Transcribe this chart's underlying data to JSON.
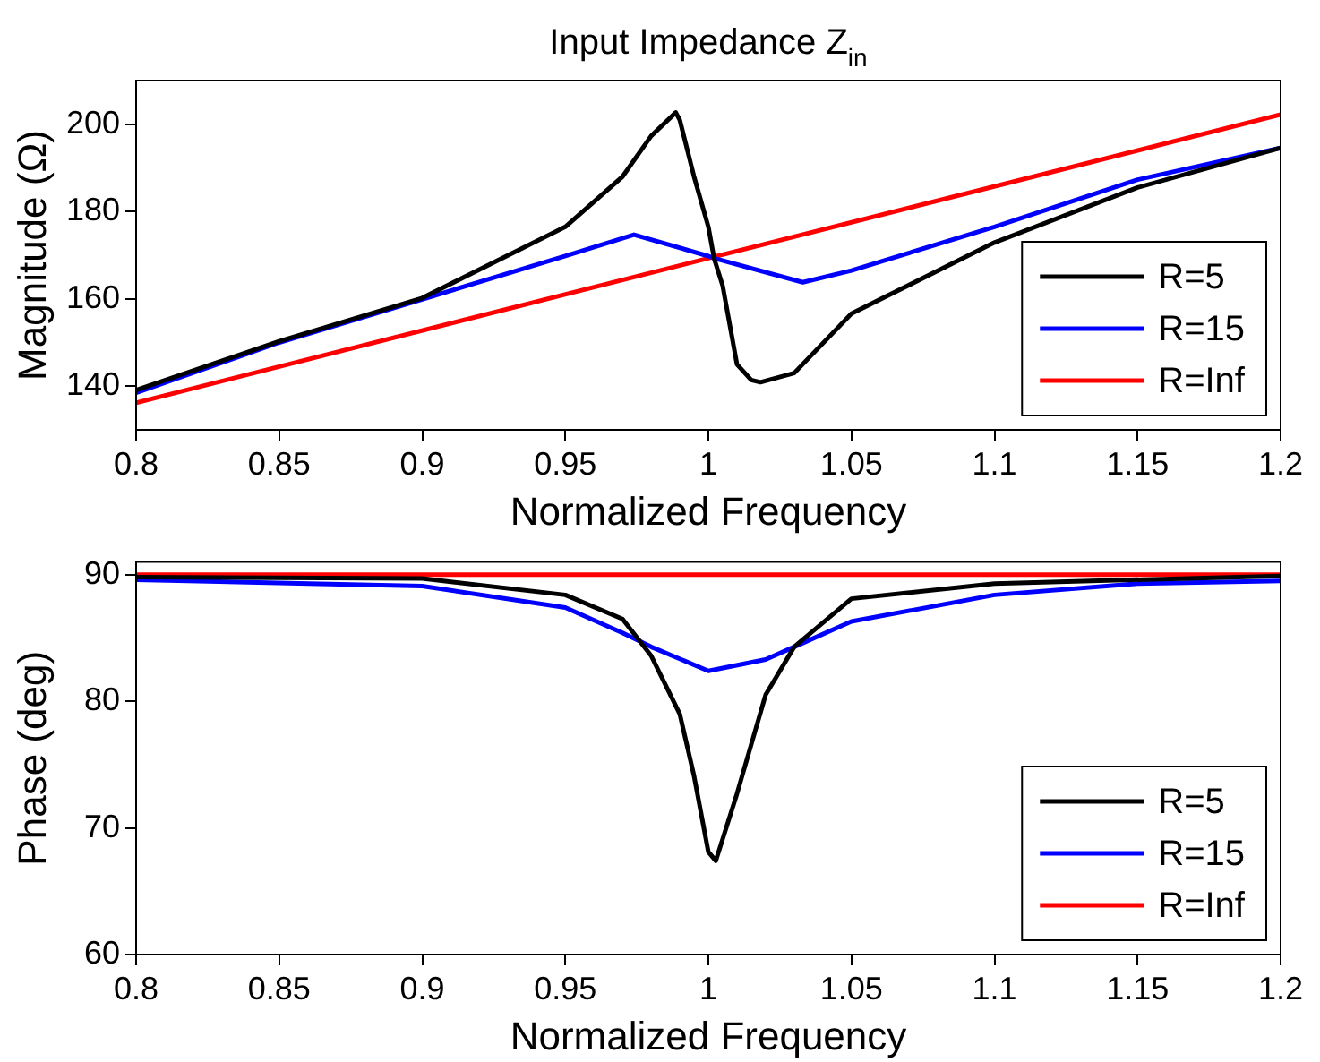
{
  "chart_data": [
    {
      "type": "line",
      "title": "Input Impedance Z$_{in}$",
      "xlabel": "Normalized Frequency",
      "ylabel": "Magnitude (Ω)",
      "xlim": [
        0.8,
        1.2
      ],
      "xticks": [
        0.8,
        0.85,
        0.9,
        0.95,
        1,
        1.05,
        1.1,
        1.15,
        1.2
      ],
      "ylim": [
        130,
        210
      ],
      "yticks": [
        140,
        160,
        180,
        200
      ],
      "grid": false,
      "legend": "bottom right",
      "marker": "none",
      "line_style": "solid",
      "series": [
        {
          "name": "R=5",
          "color": "#000000",
          "x": [
            0.8,
            0.85,
            0.9,
            0.95,
            0.97,
            0.98,
            0.9886,
            0.99,
            0.995,
            1.0,
            1.002,
            1.005,
            1.01,
            1.015,
            1.0182,
            1.03,
            1.05,
            1.1,
            1.15,
            1.2
          ],
          "values": [
            139.1,
            150.3,
            160.2,
            176.5,
            188,
            197.3,
            202.7,
            201,
            188,
            176.5,
            169.3,
            163,
            145,
            141.4,
            140.9,
            143,
            156.6,
            172.9,
            185.5,
            194.6
          ]
        },
        {
          "name": "R=15",
          "color": "#0000ff",
          "x": [
            0.8,
            0.85,
            0.9,
            0.95,
            0.974,
            1.0,
            1.002,
            1.033,
            1.05,
            1.1,
            1.15,
            1.2
          ],
          "values": [
            138.5,
            150,
            159.9,
            169.8,
            174.7,
            169.8,
            169.3,
            163.8,
            166.5,
            176.5,
            187.3,
            194.6
          ]
        },
        {
          "name": "R=Inf",
          "color": "#ff0000",
          "x": [
            0.8,
            1.0,
            1.2
          ],
          "values": [
            136.2,
            169.3,
            202.2
          ]
        }
      ]
    },
    {
      "type": "line",
      "xlabel": "Normalized Frequency",
      "ylabel": "Phase (deg)",
      "xlim": [
        0.8,
        1.2
      ],
      "xticks": [
        0.8,
        0.85,
        0.9,
        0.95,
        1,
        1.05,
        1.1,
        1.15,
        1.2
      ],
      "ylim": [
        60,
        91
      ],
      "yticks": [
        60,
        70,
        80,
        90
      ],
      "grid": false,
      "legend": "bottom right",
      "marker": "none",
      "line_style": "solid",
      "series": [
        {
          "name": "R=5",
          "color": "#000000",
          "x": [
            0.8,
            0.9,
            0.95,
            0.97,
            0.98,
            0.99,
            0.995,
            1.0,
            1.0026,
            1.01,
            1.02,
            1.03,
            1.05,
            1.1,
            1.2
          ],
          "values": [
            89.8,
            89.7,
            88.4,
            86.5,
            83.6,
            79,
            74.1,
            68.1,
            67.4,
            72.7,
            80.5,
            84.3,
            88.1,
            89.3,
            89.9
          ]
        },
        {
          "name": "R=15",
          "color": "#0000ff",
          "x": [
            0.8,
            0.9,
            0.95,
            0.97,
            0.98,
            1.0,
            1.02,
            1.03,
            1.05,
            1.1,
            1.15,
            1.2
          ],
          "values": [
            89.6,
            89.1,
            87.4,
            85.4,
            84.3,
            82.4,
            83.3,
            84.3,
            86.3,
            88.4,
            89.3,
            89.5
          ]
        },
        {
          "name": "R=Inf",
          "color": "#ff0000",
          "x": [
            0.8,
            1.2
          ],
          "values": [
            90,
            90
          ]
        }
      ]
    }
  ]
}
